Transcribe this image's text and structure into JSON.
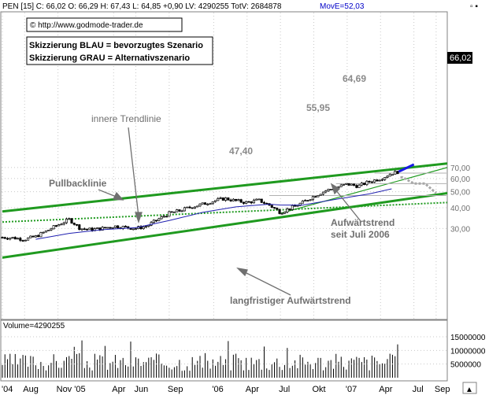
{
  "header": {
    "ticker_info": "PEN [15] C: 66,02 O: 66,29 H: 67,43 L: 64,85 +0,90 LV: 4290255 TotV: 2684878",
    "moving_average": "MovE=52,03",
    "window_buttons": "▫ ▪"
  },
  "source": "© http://www.godmode-trader.de",
  "legend_box": {
    "line1": "Skizzierung BLAU = bevorzugtes Szenario",
    "line2": "Skizzierung GRAU = Alternativszenario"
  },
  "annotations": {
    "inner_trendline": "innere Trendlinie",
    "pullback_line": "Pullbacklinie",
    "uptrend_line1": "Aufwärtstrend",
    "uptrend_line2": "seit Juli 2006",
    "long_term": "langfristiger Aufwärtstrend"
  },
  "price_levels": [
    "64,69",
    "55,95",
    "47,40"
  ],
  "last_price_label": "66,02",
  "volume_label": "Volume=4290255",
  "colors": {
    "channel": "#1f9a1f",
    "candle": "#000000",
    "moving_average": "#2020b0",
    "scenario_blue": "#1a1ae6",
    "scenario_gray": "#a8a8a8",
    "volume_bar": "#000000",
    "grid": "#c8c8c8"
  },
  "chart_data": {
    "type": "candlestick",
    "y_axis": {
      "scale": "log",
      "range": [
        25,
        76
      ],
      "ticks": [
        30,
        40,
        50,
        60,
        70
      ],
      "tick_labels": [
        "30,00",
        "40,00",
        "50,00",
        "60,00",
        "70,00"
      ]
    },
    "x_axis": {
      "range": [
        "2004-06",
        "2007-10"
      ],
      "ticks": [
        "'04",
        "Aug",
        "Nov '05",
        "Apr",
        "Jun",
        "Sep",
        "'06",
        "Apr",
        "Jul",
        "Okt",
        "'07",
        "Apr",
        "Jul",
        "Sep"
      ]
    },
    "grid": true,
    "price_path": [
      [
        "2004-06",
        26.5
      ],
      [
        "2004-07",
        26.3
      ],
      [
        "2004-08",
        25.8
      ],
      [
        "2004-09",
        26.8
      ],
      [
        "2004-10",
        29.0
      ],
      [
        "2004-11",
        31.5
      ],
      [
        "2004-12",
        34.0
      ],
      [
        "2005-01",
        30.0
      ],
      [
        "2005-02",
        29.5
      ],
      [
        "2005-03",
        30.0
      ],
      [
        "2005-04",
        31.0
      ],
      [
        "2005-05",
        30.5
      ],
      [
        "2005-06",
        30.0
      ],
      [
        "2005-07",
        31.0
      ],
      [
        "2005-08",
        34.0
      ],
      [
        "2005-09",
        37.0
      ],
      [
        "2005-10",
        38.5
      ],
      [
        "2005-11",
        40.5
      ],
      [
        "2005-12",
        42.0
      ],
      [
        "2006-01",
        44.0
      ],
      [
        "2006-02",
        45.5
      ],
      [
        "2006-03",
        44.0
      ],
      [
        "2006-04",
        43.0
      ],
      [
        "2006-05",
        44.5
      ],
      [
        "2006-06",
        41.5
      ],
      [
        "2006-07",
        37.5
      ],
      [
        "2006-08",
        40.0
      ],
      [
        "2006-09",
        43.0
      ],
      [
        "2006-10",
        47.0
      ],
      [
        "2006-11",
        50.5
      ],
      [
        "2006-12",
        53.0
      ],
      [
        "2007-01",
        55.5
      ],
      [
        "2007-02",
        54.0
      ],
      [
        "2007-03",
        57.5
      ],
      [
        "2007-04",
        60.0
      ],
      [
        "2007-05",
        64.5
      ],
      [
        "2007-05-20",
        66.02
      ]
    ],
    "moving_average_path": [
      [
        "2004-09",
        25.8
      ],
      [
        "2004-12",
        28.0
      ],
      [
        "2005-03",
        29.5
      ],
      [
        "2005-06",
        30.3
      ],
      [
        "2005-09",
        33.5
      ],
      [
        "2005-12",
        37.5
      ],
      [
        "2006-03",
        40.5
      ],
      [
        "2006-06",
        42.0
      ],
      [
        "2006-07",
        41.5
      ],
      [
        "2006-09",
        41.5
      ],
      [
        "2006-12",
        45.0
      ],
      [
        "2007-03",
        48.5
      ],
      [
        "2007-05",
        52.03
      ]
    ],
    "levels": [
      64.69,
      55.95,
      47.4
    ],
    "channel_lines": [
      {
        "name": "upper channel",
        "from": [
          "2004-06",
          38.0
        ],
        "to": [
          "2007-10",
          74.0
        ]
      },
      {
        "name": "lower channel",
        "from": [
          "2004-06",
          20.0
        ],
        "to": [
          "2007-10",
          49.0
        ]
      },
      {
        "name": "inner trendline",
        "from": [
          "2006-07",
          37.0
        ],
        "to": [
          "2007-10",
          70.0
        ]
      },
      {
        "name": "pullback line",
        "from": [
          "2004-06",
          32.8
        ],
        "to": [
          "2007-10",
          43.0
        ]
      }
    ],
    "scenario_blue": [
      [
        "2007-05-20",
        66.0
      ],
      [
        "2007-07",
        73.0
      ]
    ],
    "scenario_gray": [
      [
        "2007-05-25",
        61.0
      ],
      [
        "2007-06",
        61.0
      ],
      [
        "2007-07",
        56.0
      ],
      [
        "2007-08",
        56.0
      ],
      [
        "2007-09",
        49.0
      ]
    ],
    "volume": {
      "y_ticks": [
        5000000,
        10000000,
        15000000
      ],
      "tick_labels": [
        "5000000",
        "10000000",
        "15000000"
      ],
      "last": 4290255
    }
  }
}
